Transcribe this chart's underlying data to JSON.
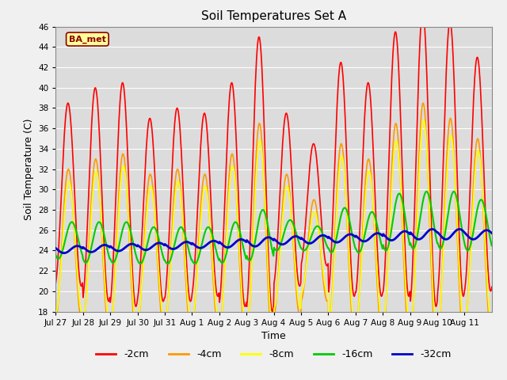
{
  "title": "Soil Temperatures Set A",
  "xlabel": "Time",
  "ylabel": "Soil Temperature (C)",
  "ylim": [
    18,
    46
  ],
  "yticks": [
    18,
    20,
    22,
    24,
    26,
    28,
    30,
    32,
    34,
    36,
    38,
    40,
    42,
    44,
    46
  ],
  "x_labels": [
    "Jul 27",
    "Jul 28",
    "Jul 29",
    "Jul 30",
    "Jul 31",
    "Aug 1",
    "Aug 2",
    "Aug 3",
    "Aug 4",
    "Aug 5",
    "Aug 6",
    "Aug 7",
    "Aug 8",
    "Aug 9",
    "Aug 10",
    "Aug 11"
  ],
  "legend_label": "BA_met",
  "series_labels": [
    "-2cm",
    "-4cm",
    "-8cm",
    "-16cm",
    "-32cm"
  ],
  "series_colors": [
    "#ff0000",
    "#ff9900",
    "#ffff00",
    "#00cc00",
    "#0000cc"
  ],
  "series_linewidths": [
    1.2,
    1.2,
    1.2,
    1.5,
    2.0
  ],
  "n_points_per_day": 48,
  "n_days": 16,
  "background_color": "#dcdcdc",
  "plot_bg_color": "#dcdcdc",
  "grid_color": "#ffffff",
  "amplitude_2cm": [
    9.0,
    10.5,
    11.0,
    9.0,
    9.5,
    9.0,
    11.0,
    13.5,
    8.5,
    6.0,
    11.5,
    10.5,
    13.0,
    14.5,
    13.5,
    11.5
  ],
  "amplitude_4cm": [
    7.5,
    8.5,
    9.0,
    7.5,
    8.0,
    7.5,
    9.0,
    11.0,
    7.0,
    5.0,
    9.5,
    8.5,
    10.5,
    12.0,
    11.0,
    9.5
  ],
  "amplitude_8cm": [
    6.5,
    7.5,
    8.0,
    6.5,
    7.0,
    6.5,
    8.0,
    9.5,
    6.0,
    4.0,
    8.5,
    7.5,
    9.0,
    10.5,
    9.5,
    8.5
  ],
  "amplitude_16cm": [
    1.8,
    2.0,
    2.0,
    1.8,
    1.8,
    1.8,
    2.0,
    2.5,
    1.5,
    1.2,
    2.2,
    2.0,
    2.8,
    2.8,
    2.8,
    2.5
  ],
  "amplitude_32cm": [
    0.35,
    0.35,
    0.35,
    0.35,
    0.35,
    0.35,
    0.4,
    0.45,
    0.4,
    0.4,
    0.4,
    0.4,
    0.45,
    0.5,
    0.5,
    0.45
  ],
  "mean_2cm": [
    29.5,
    29.5,
    29.5,
    28.0,
    28.5,
    28.5,
    29.5,
    31.5,
    29.0,
    28.5,
    31.0,
    30.0,
    32.5,
    33.0,
    33.0,
    31.5
  ],
  "mean_4cm": [
    24.5,
    24.5,
    24.5,
    24.0,
    24.0,
    24.0,
    24.5,
    25.5,
    24.5,
    24.0,
    25.0,
    24.5,
    26.0,
    26.5,
    26.0,
    25.5
  ],
  "mean_8cm": [
    24.3,
    24.3,
    24.3,
    23.8,
    23.8,
    23.8,
    24.3,
    25.3,
    24.3,
    23.8,
    24.8,
    24.3,
    25.8,
    26.3,
    25.8,
    25.3
  ],
  "mean_16cm": [
    25.0,
    24.8,
    24.8,
    24.5,
    24.5,
    24.5,
    24.8,
    25.5,
    25.5,
    25.2,
    26.0,
    25.8,
    26.8,
    27.0,
    27.0,
    26.5
  ],
  "mean_32cm": [
    24.1,
    24.2,
    24.3,
    24.4,
    24.5,
    24.6,
    24.7,
    24.85,
    25.0,
    25.1,
    25.2,
    25.3,
    25.45,
    25.6,
    25.6,
    25.55
  ],
  "phase_2cm": 1.3,
  "phase_4cm": 1.4,
  "phase_8cm": 1.5,
  "phase_16cm": 2.2,
  "phase_32cm": 3.5
}
